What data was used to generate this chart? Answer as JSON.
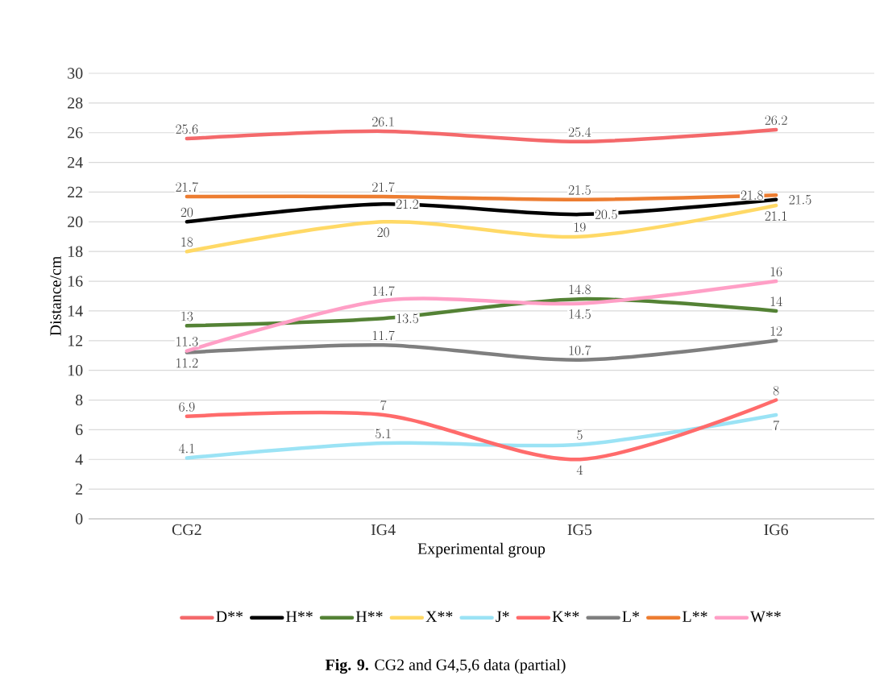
{
  "chart_data": {
    "type": "line",
    "title": "**Fig. 9.** CG2 and G4,5,6 data (partial)",
    "xlabel": "Experimental group",
    "ylabel": "Distance/cm",
    "categories": [
      "CG2",
      "IG4",
      "IG5",
      "IG6"
    ],
    "series": [
      {
        "name": "D**",
        "color": "#f4696b",
        "values": [
          25.6,
          26.1,
          25.4,
          26.2
        ]
      },
      {
        "name": "H**",
        "color": "#000000",
        "values": [
          20,
          21.2,
          20.5,
          21.5
        ]
      },
      {
        "name": "H**",
        "color": "#548235",
        "values": [
          13,
          13.5,
          14.8,
          14
        ]
      },
      {
        "name": "X**",
        "color": "#ffd966",
        "values": [
          18,
          20,
          19,
          21.1
        ]
      },
      {
        "name": "J*",
        "color": "#9be3f5",
        "values": [
          4.1,
          5.1,
          5,
          7
        ]
      },
      {
        "name": "K**",
        "color": "#ff6b6b",
        "values": [
          6.9,
          7,
          4,
          8
        ]
      },
      {
        "name": "L*",
        "color": "#7f7f7f",
        "values": [
          11.2,
          11.7,
          10.7,
          12
        ]
      },
      {
        "name": "L**",
        "color": "#ed7d31",
        "values": [
          21.7,
          21.7,
          21.5,
          21.8
        ]
      },
      {
        "name": "W**",
        "color": "#ff9fc6",
        "values": [
          11.3,
          14.7,
          14.5,
          16
        ]
      }
    ],
    "ylim": [
      0,
      30
    ],
    "yticks": [
      0,
      2,
      4,
      6,
      8,
      10,
      12,
      14,
      16,
      18,
      20,
      22,
      24,
      26,
      28,
      30
    ],
    "grid": "y",
    "legend": "bottom",
    "data_labels": true,
    "marker": "none",
    "line_style": "solid"
  }
}
